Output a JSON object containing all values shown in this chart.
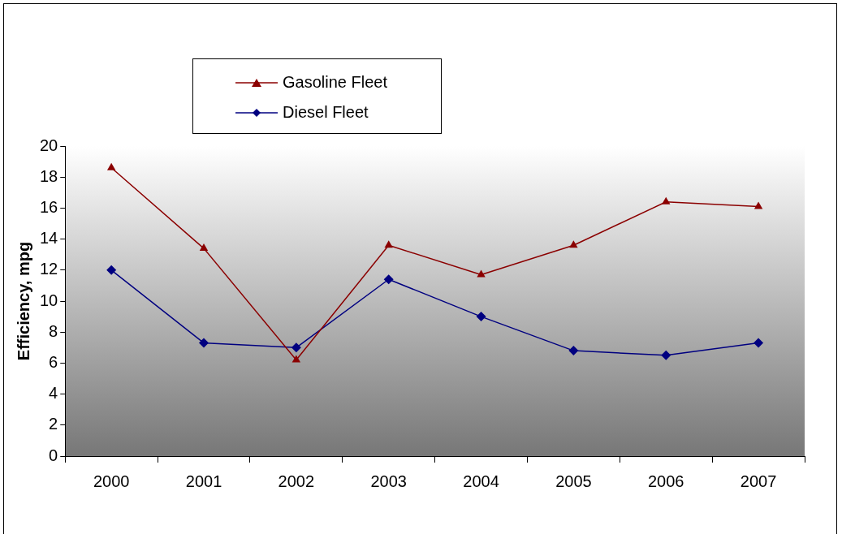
{
  "chart_data": {
    "type": "line",
    "ylabel": "Efficiency, mpg",
    "categories": [
      "2000",
      "2001",
      "2002",
      "2003",
      "2004",
      "2005",
      "2006",
      "2007"
    ],
    "series": [
      {
        "name": "Gasoline Fleet",
        "color": "#8b0000",
        "marker": "triangle",
        "values": [
          18.6,
          13.4,
          6.2,
          13.6,
          11.7,
          13.6,
          16.4,
          16.1
        ]
      },
      {
        "name": "Diesel Fleet",
        "color": "#000080",
        "marker": "diamond",
        "values": [
          12.0,
          7.3,
          7.0,
          11.4,
          9.0,
          6.8,
          6.5,
          7.3
        ]
      }
    ],
    "ylim": [
      0,
      20
    ],
    "yticks": [
      0,
      2,
      4,
      6,
      8,
      10,
      12,
      14,
      16,
      18,
      20
    ],
    "grid": false,
    "legend": "top left",
    "line_style": "solid"
  }
}
